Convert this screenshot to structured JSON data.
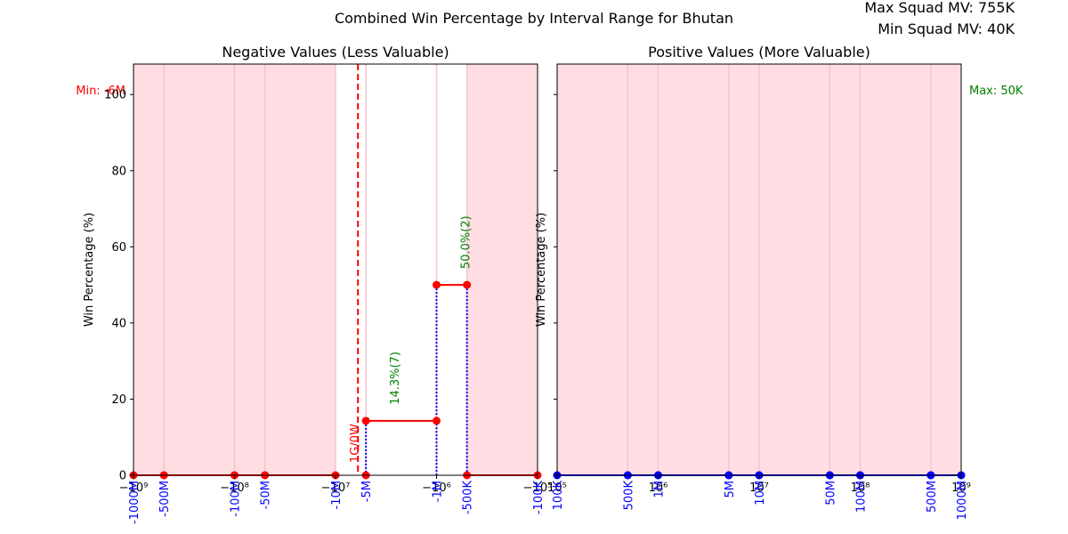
{
  "figure": {
    "title": "Combined Win Percentage by Interval Range for Bhutan",
    "info_max": "Max Squad MV: 755K",
    "info_min": "Min Squad MV: 40K"
  },
  "colors": {
    "shade": "#ffdde2",
    "shade_line": "#f7c4cf",
    "neg_line": "#ff0000",
    "pos_line": "#0000ff",
    "label_green": "#008000",
    "tick_blue": "#0000ff"
  },
  "chart_data": [
    {
      "type": "line",
      "title": "Negative Values (Less Valuable)",
      "ylabel": "Win Percentage (%)",
      "xscale": "symlog-negative",
      "xlim": [
        -1000000000,
        -100000
      ],
      "ylim": [
        0,
        108
      ],
      "yticks": [
        0,
        20,
        40,
        60,
        80,
        100
      ],
      "major_ticks": [
        {
          "value": -1000000000,
          "label": "−10⁹"
        },
        {
          "value": -100000000,
          "label": "−10⁸"
        },
        {
          "value": -10000000,
          "label": "−10⁷"
        },
        {
          "value": -1000000,
          "label": "−10⁶"
        },
        {
          "value": -100000,
          "label": "−10⁵"
        }
      ],
      "interval_ticks": [
        {
          "value": -1000000000,
          "label": "-1000M"
        },
        {
          "value": -500000000,
          "label": "-500M"
        },
        {
          "value": -100000000,
          "label": "-100M"
        },
        {
          "value": -50000000,
          "label": "-50M"
        },
        {
          "value": -10000000,
          "label": "-10M"
        },
        {
          "value": -5000000,
          "label": "-5M"
        },
        {
          "value": -1000000,
          "label": "-1M"
        },
        {
          "value": -500000,
          "label": "-500K"
        },
        {
          "value": -100000,
          "label": "-100K"
        }
      ],
      "segments": [
        {
          "x0": -1000000000,
          "x1": -500000000,
          "y": 0
        },
        {
          "x0": -500000000,
          "x1": -100000000,
          "y": 0
        },
        {
          "x0": -100000000,
          "x1": -50000000,
          "y": 0
        },
        {
          "x0": -50000000,
          "x1": -10000000,
          "y": 0
        },
        {
          "x0": -5000000,
          "x1": -1000000,
          "y": 14.3
        },
        {
          "x0": -1000000,
          "x1": -500000,
          "y": 50.0
        },
        {
          "x0": -500000,
          "x1": -100000,
          "y": 0
        }
      ],
      "unshaded_ranges": [
        [
          -10000000,
          -500000
        ]
      ],
      "dropped_markers": [
        {
          "x": -5000000,
          "y": 0
        }
      ],
      "dotted_verticals": [
        {
          "x": -5000000,
          "y": 14.3
        },
        {
          "x": -1000000,
          "y": 50.0
        },
        {
          "x": -500000,
          "y": 50.0
        }
      ],
      "annotations": [
        {
          "x": -5000000,
          "y": 14.3,
          "text": "14.3%(7)",
          "color": "green"
        },
        {
          "x": -1000000,
          "y": 50.0,
          "text": "50.0%(2)",
          "color": "green"
        }
      ],
      "marker_line": {
        "x": -6000000,
        "label": "Min: -6M"
      },
      "zero_label": {
        "text": "1G/0W",
        "x": -6000000
      }
    },
    {
      "type": "line",
      "title": "Positive Values (More Valuable)",
      "ylabel": "Win Percentage (%)",
      "xscale": "log",
      "xlim": [
        100000,
        1000000000
      ],
      "ylim": [
        0,
        108
      ],
      "major_ticks": [
        {
          "value": 100000,
          "label": "10⁵"
        },
        {
          "value": 1000000,
          "label": "10⁶"
        },
        {
          "value": 10000000,
          "label": "10⁷"
        },
        {
          "value": 100000000,
          "label": "10⁸"
        },
        {
          "value": 1000000000,
          "label": "10⁹"
        }
      ],
      "interval_ticks": [
        {
          "value": 100000,
          "label": "100K"
        },
        {
          "value": 500000,
          "label": "500K"
        },
        {
          "value": 1000000,
          "label": "1M"
        },
        {
          "value": 5000000,
          "label": "5M"
        },
        {
          "value": 10000000,
          "label": "10M"
        },
        {
          "value": 50000000,
          "label": "50M"
        },
        {
          "value": 100000000,
          "label": "100M"
        },
        {
          "value": 500000000,
          "label": "500M"
        },
        {
          "value": 1000000000,
          "label": "1000M"
        }
      ],
      "segments": [
        {
          "x0": 100000,
          "x1": 500000,
          "y": 0
        },
        {
          "x0": 500000,
          "x1": 1000000,
          "y": 0
        },
        {
          "x0": 1000000,
          "x1": 5000000,
          "y": 0
        },
        {
          "x0": 5000000,
          "x1": 10000000,
          "y": 0
        },
        {
          "x0": 10000000,
          "x1": 50000000,
          "y": 0
        },
        {
          "x0": 50000000,
          "x1": 100000000,
          "y": 0
        },
        {
          "x0": 100000000,
          "x1": 500000000,
          "y": 0
        },
        {
          "x0": 500000000,
          "x1": 1000000000,
          "y": 0
        }
      ],
      "unshaded_ranges": [],
      "marker_line": {
        "label": "Max: 50K"
      }
    }
  ]
}
